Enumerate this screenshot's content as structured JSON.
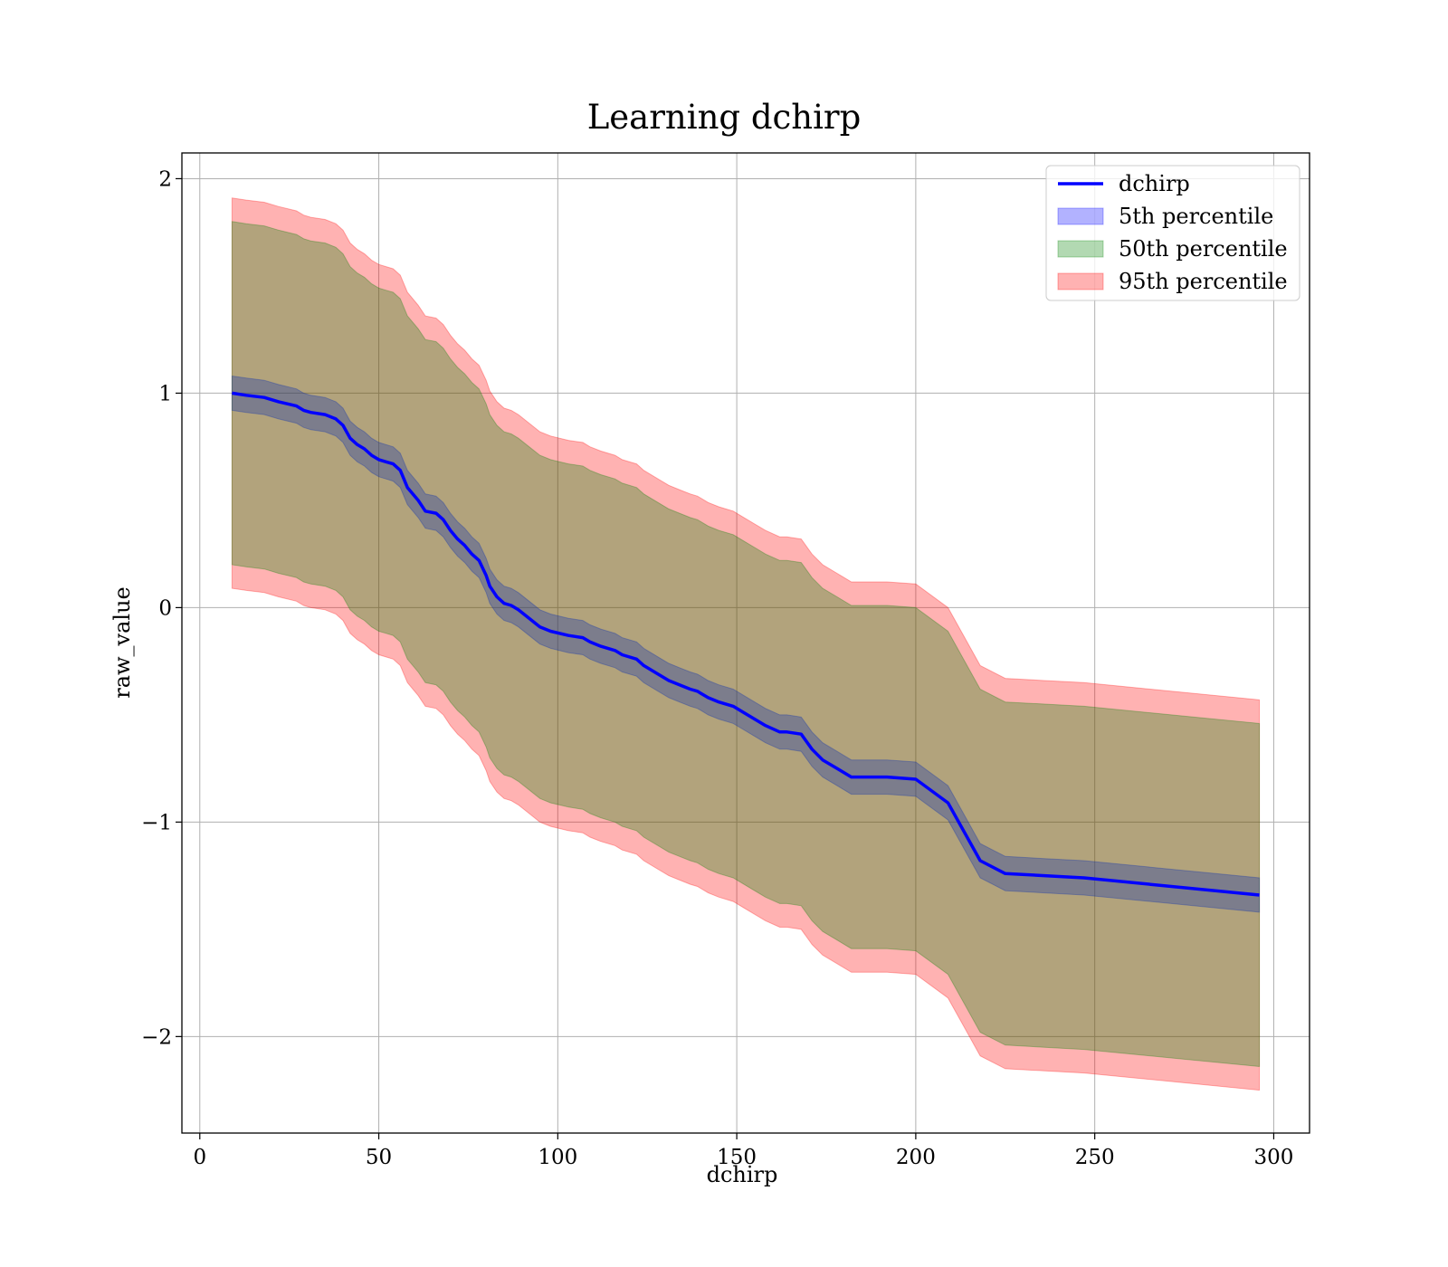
{
  "chart_data": {
    "type": "area",
    "title": "Learning dchirp",
    "xlabel": "dchirp",
    "ylabel": "raw_value",
    "xlim": [
      -5,
      310
    ],
    "ylim": [
      -2.45,
      2.12
    ],
    "xticks": [
      0,
      50,
      100,
      150,
      200,
      250,
      300
    ],
    "yticks": [
      -2,
      -1,
      0,
      1,
      2
    ],
    "xtick_labels": [
      "0",
      "50",
      "100",
      "150",
      "200",
      "250",
      "300"
    ],
    "ytick_labels": [
      "−2",
      "−1",
      "0",
      "1",
      "2"
    ],
    "grid": true,
    "legend_position": "upper-right",
    "x": [
      9,
      13,
      18,
      22,
      27,
      29,
      31,
      35,
      38,
      40,
      42,
      44,
      46,
      48,
      50,
      52,
      54,
      56,
      58,
      61,
      63,
      66,
      68,
      70,
      72,
      74,
      76,
      78,
      80,
      81,
      83,
      85,
      87,
      89,
      92,
      95,
      98,
      103,
      107,
      109,
      112,
      116,
      118,
      122,
      124,
      128,
      131,
      134,
      137,
      139,
      140,
      142,
      145,
      149,
      152,
      155,
      158,
      162,
      164,
      168,
      171,
      174,
      178,
      182,
      187,
      192,
      200,
      209,
      218,
      225,
      236,
      247,
      296
    ],
    "series": [
      {
        "name": "dchirp",
        "color": "#0000ff",
        "values": [
          1.0,
          0.99,
          0.98,
          0.96,
          0.94,
          0.92,
          0.91,
          0.9,
          0.88,
          0.85,
          0.79,
          0.76,
          0.74,
          0.71,
          0.69,
          0.68,
          0.67,
          0.64,
          0.56,
          0.5,
          0.45,
          0.44,
          0.41,
          0.36,
          0.32,
          0.29,
          0.25,
          0.22,
          0.15,
          0.1,
          0.05,
          0.02,
          0.01,
          -0.01,
          -0.05,
          -0.09,
          -0.11,
          -0.13,
          -0.14,
          -0.16,
          -0.18,
          -0.2,
          -0.22,
          -0.24,
          -0.27,
          -0.31,
          -0.34,
          -0.36,
          -0.38,
          -0.39,
          -0.4,
          -0.42,
          -0.44,
          -0.46,
          -0.49,
          -0.52,
          -0.55,
          -0.58,
          -0.58,
          -0.59,
          -0.66,
          -0.71,
          -0.75,
          -0.79,
          -0.79,
          -0.79,
          -0.8,
          -0.91,
          -1.18,
          -1.24,
          -1.25,
          -1.26,
          -1.34
        ]
      },
      {
        "name": "5th percentile",
        "color": "#0000ff",
        "opacity": 0.3,
        "offset": [
          0.08,
          0.08,
          0.08,
          0.08,
          0.08,
          0.08,
          0.08,
          0.08,
          0.08,
          0.08,
          0.08,
          0.08,
          0.08,
          0.08,
          0.08,
          0.08,
          0.08,
          0.08,
          0.08,
          0.08,
          0.08,
          0.08,
          0.08,
          0.08,
          0.08,
          0.08,
          0.08,
          0.08,
          0.08,
          0.08,
          0.08,
          0.08,
          0.08,
          0.08,
          0.08,
          0.08,
          0.08,
          0.08,
          0.08,
          0.08,
          0.08,
          0.08,
          0.08,
          0.08,
          0.08,
          0.08,
          0.08,
          0.08,
          0.08,
          0.08,
          0.08,
          0.08,
          0.08,
          0.08,
          0.08,
          0.08,
          0.08,
          0.08,
          0.08,
          0.08,
          0.08,
          0.08,
          0.08,
          0.08,
          0.08,
          0.08,
          0.08,
          0.08,
          0.08,
          0.08,
          0.08,
          0.08,
          0.08
        ]
      },
      {
        "name": "50th percentile",
        "color": "#008000",
        "opacity": 0.3,
        "offset": [
          0.8,
          0.8,
          0.8,
          0.8,
          0.8,
          0.8,
          0.8,
          0.8,
          0.8,
          0.8,
          0.8,
          0.8,
          0.8,
          0.8,
          0.8,
          0.8,
          0.8,
          0.8,
          0.8,
          0.8,
          0.8,
          0.8,
          0.8,
          0.8,
          0.8,
          0.8,
          0.8,
          0.8,
          0.8,
          0.8,
          0.8,
          0.8,
          0.8,
          0.8,
          0.8,
          0.8,
          0.8,
          0.8,
          0.8,
          0.8,
          0.8,
          0.8,
          0.8,
          0.8,
          0.8,
          0.8,
          0.8,
          0.8,
          0.8,
          0.8,
          0.8,
          0.8,
          0.8,
          0.8,
          0.8,
          0.8,
          0.8,
          0.8,
          0.8,
          0.8,
          0.8,
          0.8,
          0.8,
          0.8,
          0.8,
          0.8,
          0.8,
          0.8,
          0.8,
          0.8,
          0.8,
          0.8,
          0.8
        ]
      },
      {
        "name": "95th percentile",
        "color": "#ff0000",
        "opacity": 0.3,
        "offset": [
          0.91,
          0.91,
          0.91,
          0.91,
          0.91,
          0.91,
          0.91,
          0.91,
          0.91,
          0.91,
          0.91,
          0.91,
          0.91,
          0.91,
          0.91,
          0.91,
          0.91,
          0.91,
          0.91,
          0.91,
          0.91,
          0.91,
          0.91,
          0.91,
          0.91,
          0.91,
          0.91,
          0.91,
          0.91,
          0.91,
          0.91,
          0.91,
          0.91,
          0.91,
          0.91,
          0.91,
          0.91,
          0.91,
          0.91,
          0.91,
          0.91,
          0.91,
          0.91,
          0.91,
          0.91,
          0.91,
          0.91,
          0.91,
          0.91,
          0.91,
          0.91,
          0.91,
          0.91,
          0.91,
          0.91,
          0.91,
          0.91,
          0.91,
          0.91,
          0.91,
          0.91,
          0.91,
          0.91,
          0.91,
          0.91,
          0.91,
          0.91,
          0.91,
          0.91,
          0.91,
          0.91,
          0.91,
          0.91
        ]
      }
    ]
  }
}
